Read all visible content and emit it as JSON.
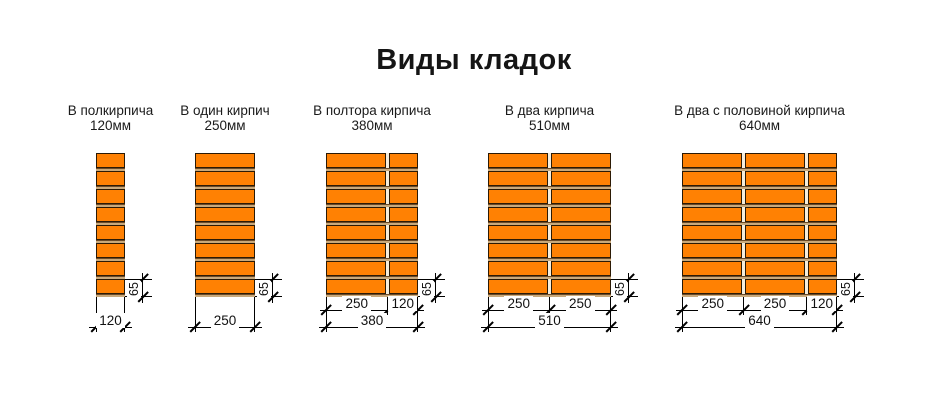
{
  "title": "Виды кладок",
  "brick_height_label": "65",
  "colors": {
    "brick": "#ff8103",
    "brick_border": "#2b1a05",
    "mortar": "#c9a97b",
    "mortar_edge": "#6b4a28",
    "joint": "#f6eedd",
    "line": "#000000"
  },
  "stacks": [
    {
      "name": "В полкирпича",
      "size": "120мм",
      "rows": 8,
      "columns": [
        {
          "mm": 120,
          "label": "120"
        }
      ],
      "total_label": "120"
    },
    {
      "name": "В один кирпич",
      "size": "250мм",
      "rows": 8,
      "columns": [
        {
          "mm": 250,
          "label": "250"
        }
      ],
      "total_label": "250"
    },
    {
      "name": "В полтора кирпича",
      "size": "380мм",
      "rows": 8,
      "columns": [
        {
          "mm": 250,
          "label": "250"
        },
        {
          "mm": 120,
          "label": "120"
        }
      ],
      "total_label": "380"
    },
    {
      "name": "В два кирпича",
      "size": "510мм",
      "rows": 8,
      "columns": [
        {
          "mm": 250,
          "label": "250"
        },
        {
          "mm": 250,
          "label": "250"
        }
      ],
      "total_label": "510"
    },
    {
      "name": "В два с половиной кирпича",
      "size": "640мм",
      "rows": 8,
      "columns": [
        {
          "mm": 250,
          "label": "250"
        },
        {
          "mm": 250,
          "label": "250"
        },
        {
          "mm": 120,
          "label": "120"
        }
      ],
      "total_label": "640"
    }
  ]
}
